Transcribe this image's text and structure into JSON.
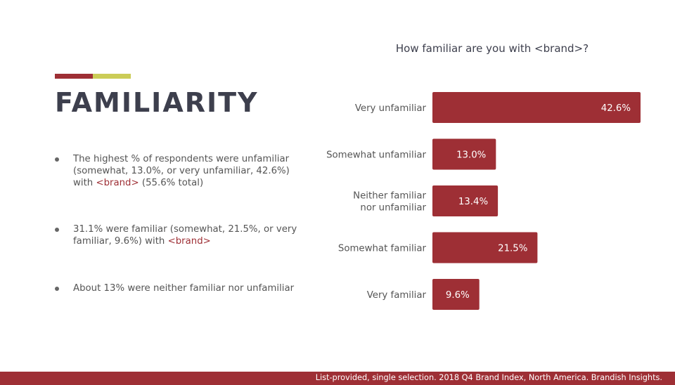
{
  "header": {
    "title": "FAMILIARITY"
  },
  "bullets": [
    {
      "text_before": "The highest % of respondents were unfamiliar (somewhat, 13.0%, or very unfamiliar, 42.6%) with ",
      "brand": "<brand>",
      "text_after": " (55.6% total)"
    },
    {
      "text_before": "31.1% were familiar (somewhat, 21.5%, or very familiar, 9.6%) with ",
      "brand": "<brand>",
      "text_after": ""
    },
    {
      "text_before": "About 13% were neither familiar nor unfamiliar",
      "brand": "",
      "text_after": ""
    }
  ],
  "chart_data": {
    "type": "bar",
    "orientation": "horizontal",
    "title": "How familiar are you with <brand>?",
    "categories": [
      "Very unfamiliar",
      "Somewhat unfamiliar",
      "Neither familiar nor unfamiliar",
      "Somewhat familiar",
      "Very familiar"
    ],
    "category_lines": [
      [
        "Very unfamiliar"
      ],
      [
        "Somewhat unfamiliar"
      ],
      [
        "Neither familiar",
        "nor unfamiliar"
      ],
      [
        "Somewhat familiar"
      ],
      [
        "Very familiar"
      ]
    ],
    "values": [
      42.6,
      13.0,
      13.4,
      21.5,
      9.6
    ],
    "value_labels": [
      "42.6%",
      "13.0%",
      "13.4%",
      "21.5%",
      "9.6%"
    ],
    "xlim": [
      0,
      42.6
    ],
    "grid": false,
    "legend": "none"
  },
  "footer": {
    "text": "List-provided, single selection.  2018 Q4 Brand Index, North America. Brandish Insights."
  },
  "colors": {
    "accent_red": "#9e2f35",
    "accent_yellow": "#cbcc57",
    "bar": "#9e2f35",
    "heading": "#3d3f4d"
  }
}
